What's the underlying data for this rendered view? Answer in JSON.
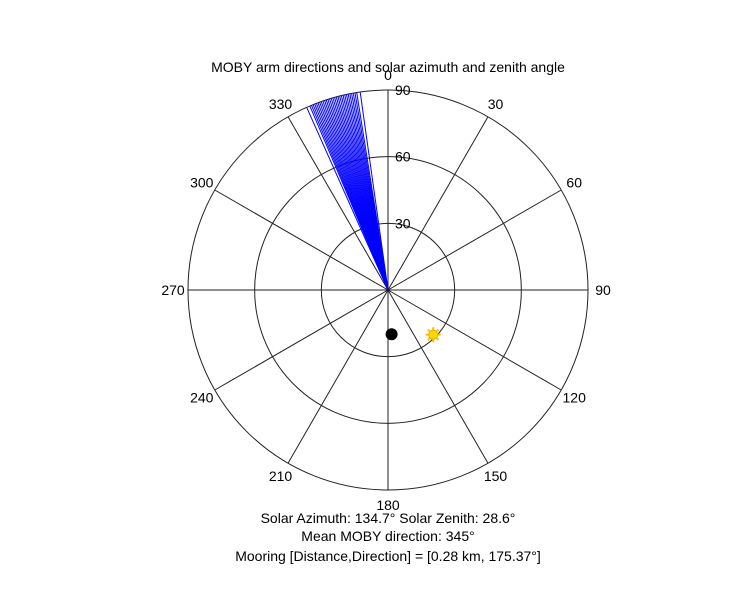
{
  "chart_data": {
    "type": "polar",
    "title": "MOBY arm directions and solar azimuth and zenith angle",
    "angular_axis": {
      "zero_location": "top",
      "direction": "clockwise",
      "tick_labels": [
        "0",
        "30",
        "60",
        "90",
        "120",
        "150",
        "180",
        "210",
        "240",
        "270",
        "300",
        "330"
      ]
    },
    "radial_axis": {
      "range": [
        0,
        90
      ],
      "rings": [
        30,
        60,
        90
      ],
      "tick_labels": [
        "30",
        "60",
        "90"
      ]
    },
    "series": [
      {
        "kind": "arm_lines",
        "color": "#0000ff",
        "directions_deg": [
          336,
          337,
          337.5,
          338,
          338.5,
          339,
          339.5,
          340,
          340.5,
          341,
          341.5,
          342,
          342.5,
          343,
          343.5,
          344,
          344.5,
          345,
          345.5,
          346,
          346.5,
          347,
          347.5,
          348,
          348.5,
          349,
          349.5,
          350,
          350.5,
          351,
          352
        ],
        "radius": 90
      },
      {
        "kind": "sun_marker",
        "color": "#ffd700",
        "azimuth_deg": 134.7,
        "zenith_deg": 28.6
      },
      {
        "kind": "mooring_marker",
        "color": "#000000",
        "direction_deg": 175.37,
        "radius": 20
      }
    ],
    "annotations": [
      "Solar Azimuth: 134.7°    Solar Zenith: 28.6°",
      "Mean MOBY direction: 345°",
      "Mooring [Distance,Direction] = [0.28 km, 175.37°]"
    ]
  }
}
